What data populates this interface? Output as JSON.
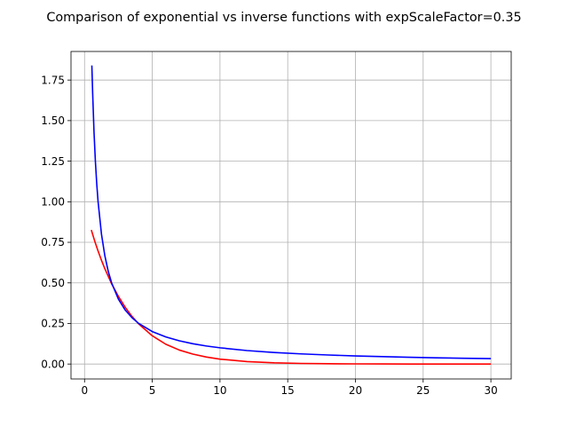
{
  "chart_data": {
    "type": "line",
    "title": "Comparison of exponential vs inverse functions with expScaleFactor=0.35",
    "xlabel": "",
    "ylabel": "",
    "xlim": [
      -1.0,
      31.5
    ],
    "ylim": [
      -0.092,
      1.926
    ],
    "x_ticks": [
      0,
      5,
      10,
      15,
      20,
      25,
      30
    ],
    "x_tick_labels": [
      "0",
      "5",
      "10",
      "15",
      "20",
      "25",
      "30"
    ],
    "y_ticks": [
      0.0,
      0.25,
      0.5,
      0.75,
      1.0,
      1.25,
      1.5,
      1.75
    ],
    "y_tick_labels": [
      "0.00",
      "0.25",
      "0.50",
      "0.75",
      "1.00",
      "1.25",
      "1.50",
      "1.75"
    ],
    "grid": true,
    "series": [
      {
        "color": "#ff0000",
        "x": [
          0.5,
          0.75,
          1,
          1.25,
          1.5,
          2,
          2.5,
          3,
          3.5,
          4,
          5,
          6,
          7,
          8,
          9,
          10,
          12,
          14,
          16,
          18,
          20,
          22,
          24,
          26,
          28,
          30
        ],
        "y": [
          0.826,
          0.758,
          0.696,
          0.639,
          0.587,
          0.494,
          0.417,
          0.35,
          0.294,
          0.247,
          0.174,
          0.122,
          0.086,
          0.061,
          0.043,
          0.03,
          0.015,
          0.0075,
          0.0037,
          0.0018,
          0.0009,
          0.0005,
          0.0002,
          0.0001,
          0.0001,
          0.0
        ]
      },
      {
        "color": "#0000ff",
        "x": [
          0.54,
          0.6,
          0.7,
          0.8,
          0.9,
          1,
          1.25,
          1.5,
          1.75,
          2,
          2.5,
          3,
          3.5,
          4,
          5,
          6,
          7,
          8,
          9,
          10,
          12,
          14,
          16,
          18,
          20,
          22,
          24,
          26,
          28,
          30
        ],
        "y": [
          1.84,
          1.667,
          1.429,
          1.25,
          1.111,
          1.0,
          0.8,
          0.667,
          0.571,
          0.5,
          0.4,
          0.333,
          0.286,
          0.25,
          0.2,
          0.167,
          0.143,
          0.125,
          0.111,
          0.1,
          0.083,
          0.071,
          0.0625,
          0.0556,
          0.05,
          0.0455,
          0.0417,
          0.0385,
          0.0357,
          0.0333
        ]
      }
    ]
  }
}
